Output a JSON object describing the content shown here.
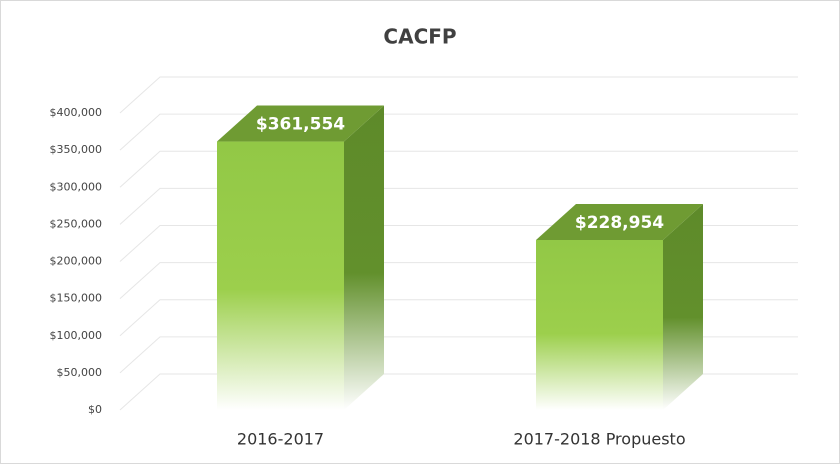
{
  "chart_data": {
    "type": "bar3d",
    "title": "CACFP",
    "categories": [
      "2016-2017",
      "2017-2018 Propuesto"
    ],
    "values": [
      361554,
      228954
    ],
    "value_labels": [
      "$361,554",
      "$228,954"
    ],
    "color": "#92c846",
    "ylim": [
      0,
      400000
    ],
    "yticks": [
      {
        "value": 0,
        "label": "$0"
      },
      {
        "value": 50000,
        "label": "$50,000"
      },
      {
        "value": 100000,
        "label": "$100,000"
      },
      {
        "value": 150000,
        "label": "$150,000"
      },
      {
        "value": 200000,
        "label": "$200,000"
      },
      {
        "value": 250000,
        "label": "$250,000"
      },
      {
        "value": 300000,
        "label": "$300,000"
      },
      {
        "value": 350000,
        "label": "$350,000"
      },
      {
        "value": 400000,
        "label": "$400,000"
      }
    ],
    "grid": true
  }
}
